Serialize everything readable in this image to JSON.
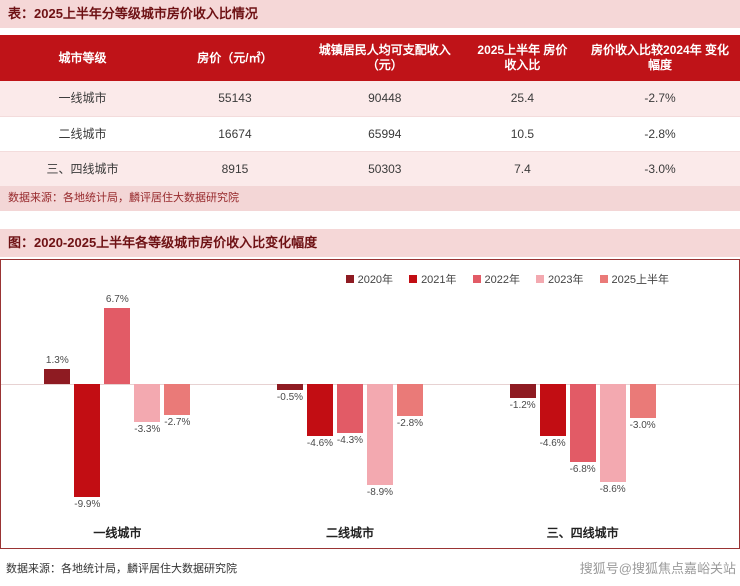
{
  "watermark": "搜狐号@搜狐焦点嘉峪关站",
  "table_section": {
    "title": "表：2025上半年分等级城市房价收入比情况",
    "columns": [
      "城市等级",
      "房价（元/㎡）",
      "城镇居民人均可支配收入（元）",
      "2025上半年 房价收入比",
      "房价收入比较2024年 变化幅度"
    ],
    "rows": [
      [
        "一线城市",
        "55143",
        "90448",
        "25.4",
        "-2.7%"
      ],
      [
        "二线城市",
        "16674",
        "65994",
        "10.5",
        "-2.8%"
      ],
      [
        "三、四线城市",
        "8915",
        "50303",
        "7.4",
        "-3.0%"
      ]
    ],
    "source": "数据来源：各地统计局，麟评居住大数据研究院"
  },
  "chart_section": {
    "title": "图：2020-2025上半年各等级城市房价收入比变化幅度",
    "source": "数据来源：各地统计局，麟评居住大数据研究院"
  },
  "chart_data": {
    "type": "bar",
    "title": "2020-2025上半年各等级城市房价收入比变化幅度",
    "categories": [
      "一线城市",
      "二线城市",
      "三、四线城市"
    ],
    "series": [
      {
        "name": "2020年",
        "color": "#8e1b22",
        "values": [
          1.3,
          -0.5,
          -1.2
        ]
      },
      {
        "name": "2021年",
        "color": "#c20d13",
        "values": [
          -9.9,
          -4.6,
          -4.6
        ]
      },
      {
        "name": "2022年",
        "color": "#e25b66",
        "values": [
          6.7,
          -4.3,
          -6.8
        ]
      },
      {
        "name": "2023年",
        "color": "#f3a9b0",
        "values": [
          -3.3,
          -8.9,
          -8.6
        ]
      },
      {
        "name": "2025上半年",
        "color": "#ea7a78",
        "values": [
          -2.7,
          -2.8,
          -3.0
        ]
      }
    ],
    "value_suffix": "%",
    "xlabel": "",
    "ylabel": "",
    "ylim": [
      -11,
      8
    ],
    "grid": false,
    "legend_position": "top"
  }
}
